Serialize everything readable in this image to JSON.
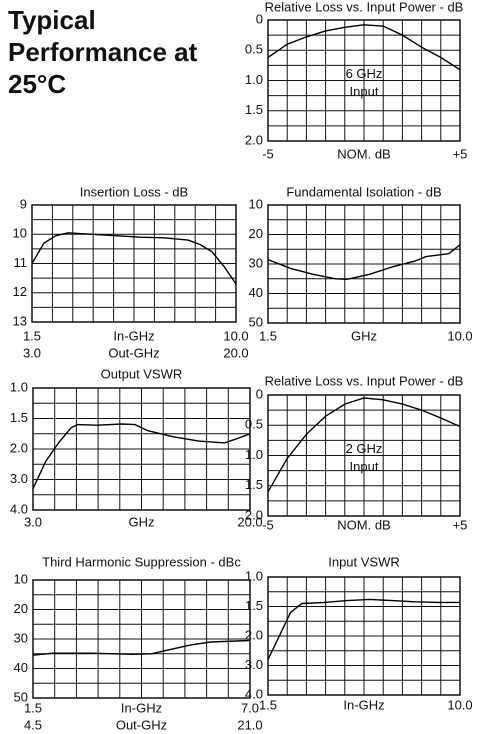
{
  "heading": "Typical Performance at 25°C",
  "chart_data": [
    {
      "type": "line",
      "title": "Relative Loss vs. Input Power - dB",
      "xlabel": "NOM. dB",
      "x": [
        -5,
        -4,
        -3,
        -2,
        -1,
        0,
        1,
        2,
        3,
        4,
        5
      ],
      "values": [
        0.62,
        0.4,
        0.28,
        0.18,
        0.12,
        0.08,
        0.1,
        0.25,
        0.45,
        0.62,
        0.82
      ],
      "color": "#000000",
      "xlim": [
        -5,
        5
      ],
      "xticks": [
        -5,
        {
          "value": 5,
          "label": "+5"
        }
      ],
      "ylim": [
        0,
        2
      ],
      "yticks": [
        0,
        0.5,
        {
          "value": 1,
          "label": "1.0"
        },
        1.5,
        {
          "value": 2,
          "label": "2.0"
        }
      ],
      "annotations": [
        "6 GHz",
        "Input"
      ],
      "grid": true
    },
    {
      "type": "line",
      "title": "Insertion Loss - dB",
      "xlabel": "In-GHz",
      "x2label": "Out-GHz",
      "x": [
        1.5,
        2,
        2.5,
        3,
        4,
        5,
        6,
        7,
        8,
        8.5,
        9,
        9.5,
        10
      ],
      "values": [
        11.0,
        10.3,
        10.05,
        9.95,
        10.0,
        10.05,
        10.1,
        10.12,
        10.2,
        10.35,
        10.6,
        11.1,
        11.7
      ],
      "color": "#000000",
      "xlim": [
        1.5,
        10
      ],
      "xticks": [
        1.5,
        {
          "value": 10,
          "label": "10.0"
        }
      ],
      "x2lim": [
        3,
        20
      ],
      "x2ticks": [
        {
          "value": 3,
          "label": "3.0"
        },
        {
          "value": 20,
          "label": "20.0"
        }
      ],
      "ylim": [
        9,
        13
      ],
      "yticks": [
        9,
        10,
        11,
        12,
        13
      ],
      "grid": true
    },
    {
      "type": "line",
      "title": "Fundamental Isolation - dB",
      "xlabel": "GHz",
      "x": [
        1.5,
        2.5,
        3.5,
        4.5,
        5,
        6,
        7,
        8,
        8.5,
        9.5,
        10
      ],
      "values": [
        28.5,
        31.5,
        33.5,
        35,
        35.2,
        33.5,
        31,
        29,
        27.5,
        26.5,
        23.5
      ],
      "color": "#000000",
      "xlim": [
        1.5,
        10
      ],
      "xticks": [
        1.5,
        {
          "value": 10,
          "label": "10.0"
        }
      ],
      "ylim": [
        10,
        50
      ],
      "yticks": [
        10,
        20,
        30,
        40,
        50
      ],
      "grid": true
    },
    {
      "type": "line",
      "title": "Output VSWR",
      "xlabel": "GHz",
      "x": [
        3,
        4,
        5,
        6,
        6.5,
        8,
        10,
        11,
        12,
        14,
        16,
        18,
        19,
        20
      ],
      "values": [
        3.3,
        2.4,
        1.9,
        1.65,
        1.6,
        1.61,
        1.59,
        1.6,
        1.7,
        1.8,
        1.87,
        1.9,
        1.83,
        1.75
      ],
      "color": "#000000",
      "xlim": [
        3,
        20
      ],
      "xticks": [
        {
          "value": 3,
          "label": "3.0"
        },
        {
          "value": 20,
          "label": "20.0"
        }
      ],
      "ylim": [
        1,
        4
      ],
      "yticks": [
        {
          "value": 1,
          "label": "1.0"
        },
        1.5,
        {
          "value": 2,
          "label": "2.0"
        },
        {
          "value": 3,
          "label": "3.0"
        },
        {
          "value": 4,
          "label": "4.0"
        }
      ],
      "grid": true
    },
    {
      "type": "line",
      "title": "Relative Loss vs. Input Power - dB",
      "xlabel": "NOM. dB",
      "x": [
        -5,
        -4,
        -3,
        -2,
        -1,
        0,
        1,
        2,
        3,
        4,
        5
      ],
      "values": [
        1.6,
        1.05,
        0.65,
        0.35,
        0.15,
        0.05,
        0.08,
        0.15,
        0.25,
        0.38,
        0.52
      ],
      "color": "#000000",
      "xlim": [
        -5,
        5
      ],
      "xticks": [
        -5,
        {
          "value": 5,
          "label": "+5"
        }
      ],
      "ylim": [
        0,
        2
      ],
      "yticks": [
        0,
        0.5,
        {
          "value": 1,
          "label": "1.0"
        },
        1.5,
        {
          "value": 2,
          "label": "2.0"
        }
      ],
      "annotations": [
        "2 GHz",
        "Input"
      ],
      "grid": true
    },
    {
      "type": "line",
      "title": "Third Harmonic Suppression - dBc",
      "xlabel": "In-GHz",
      "x2label": "Out-GHz",
      "x": [
        1.5,
        2,
        3,
        4,
        4.5,
        5,
        5.5,
        6,
        7
      ],
      "values": [
        35.5,
        34.8,
        34.8,
        35.2,
        35.0,
        33.5,
        32,
        31,
        30.5
      ],
      "color": "#000000",
      "xlim": [
        1.5,
        7
      ],
      "xticks": [
        1.5,
        {
          "value": 7,
          "label": "7.0"
        }
      ],
      "x2lim": [
        4.5,
        21
      ],
      "x2ticks": [
        4.5,
        {
          "value": 21,
          "label": "21.0"
        }
      ],
      "ylim": [
        10,
        50
      ],
      "yticks": [
        10,
        20,
        30,
        40,
        50
      ],
      "grid": true
    },
    {
      "type": "line",
      "title": "Input VSWR",
      "xlabel": "In-GHz",
      "x": [
        1.5,
        2,
        2.5,
        3,
        4,
        5,
        6,
        7,
        8,
        9,
        10
      ],
      "values": [
        2.8,
        2.0,
        1.6,
        1.45,
        1.43,
        1.4,
        1.38,
        1.4,
        1.42,
        1.43,
        1.43
      ],
      "color": "#000000",
      "xlim": [
        1.5,
        10
      ],
      "xticks": [
        1.5,
        {
          "value": 10,
          "label": "10.0"
        }
      ],
      "ylim": [
        1,
        4
      ],
      "yticks": [
        {
          "value": 1,
          "label": "1.0"
        },
        1.5,
        {
          "value": 2,
          "label": "2.0"
        },
        {
          "value": 3,
          "label": "3.0"
        },
        {
          "value": 4,
          "label": "4.0"
        }
      ],
      "grid": true
    }
  ]
}
